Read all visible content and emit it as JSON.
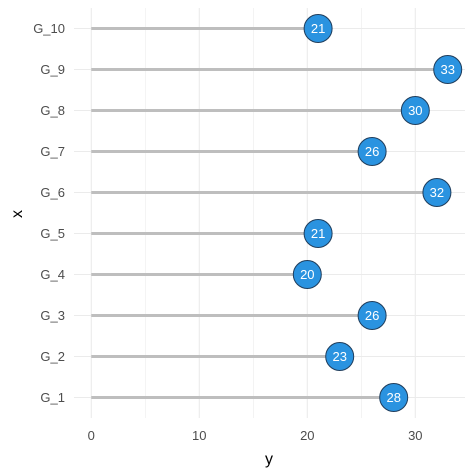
{
  "chart_data": {
    "type": "lollipop",
    "xlabel": "y",
    "ylabel": "x",
    "categories": [
      "G_1",
      "G_2",
      "G_3",
      "G_4",
      "G_5",
      "G_6",
      "G_7",
      "G_8",
      "G_9",
      "G_10"
    ],
    "values": [
      28,
      23,
      26,
      20,
      21,
      32,
      26,
      30,
      33,
      21
    ],
    "value_labels": [
      "28",
      "23",
      "26",
      "20",
      "21",
      "32",
      "26",
      "30",
      "33",
      "21"
    ],
    "xlim": [
      -1.6,
      34.6
    ],
    "x_ticks": [
      0,
      10,
      20,
      30
    ],
    "x_tick_labels": [
      "0",
      "10",
      "20",
      "30"
    ],
    "grid": true,
    "legend": "none",
    "colors": {
      "stem": "#bebebe",
      "point_fill": "#2a93e0",
      "point_stroke": "#1f3d5c",
      "label": "#ffffff",
      "grid": "#ebebeb"
    }
  }
}
